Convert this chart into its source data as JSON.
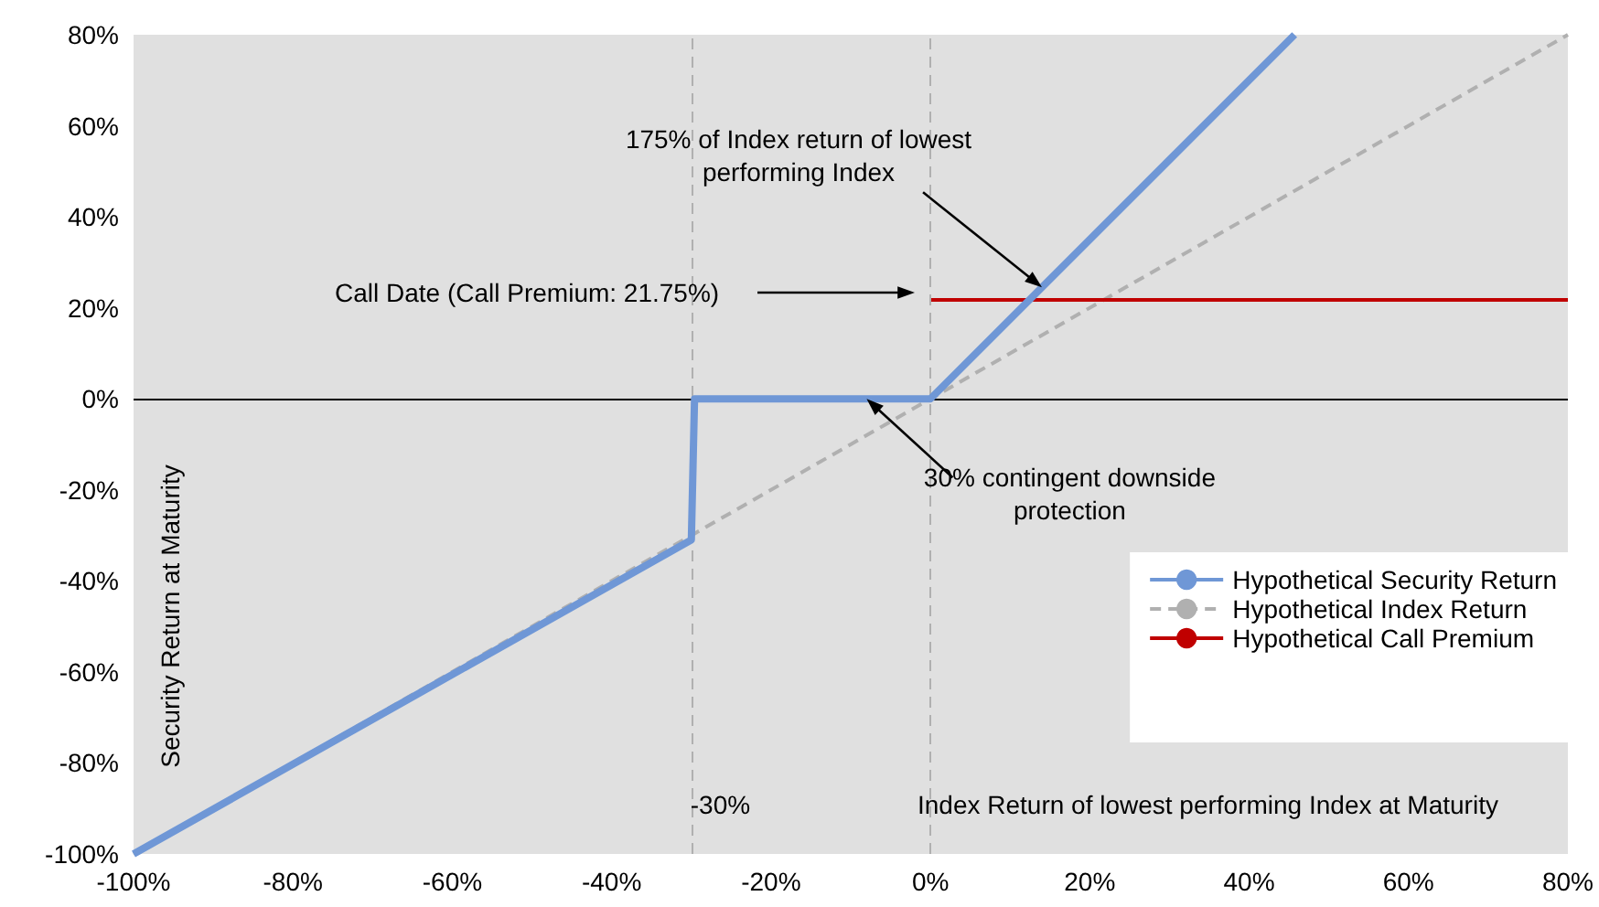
{
  "chart_data": {
    "type": "line",
    "xlabel": "Index Return of lowest performing Index at Maturity",
    "ylabel": "Security Return at Maturity",
    "xlim": [
      -100,
      80
    ],
    "ylim": [
      -100,
      80
    ],
    "xticks": [
      {
        "value": -100,
        "label": "-100%"
      },
      {
        "value": -80,
        "label": "-80%"
      },
      {
        "value": -60,
        "label": "-60%"
      },
      {
        "value": -40,
        "label": "-40%"
      },
      {
        "value": -20,
        "label": "-20%"
      },
      {
        "value": 0,
        "label": "0%"
      },
      {
        "value": 20,
        "label": "20%"
      },
      {
        "value": 40,
        "label": "40%"
      },
      {
        "value": 60,
        "label": "60%"
      },
      {
        "value": 80,
        "label": "80%"
      }
    ],
    "yticks": [
      {
        "value": -100,
        "label": "-100%"
      },
      {
        "value": -80,
        "label": "-80%"
      },
      {
        "value": -60,
        "label": "-60%"
      },
      {
        "value": -40,
        "label": "-40%"
      },
      {
        "value": -20,
        "label": "-20%"
      },
      {
        "value": 0,
        "label": "0%"
      },
      {
        "value": 20,
        "label": "20%"
      },
      {
        "value": 40,
        "label": "40%"
      },
      {
        "value": 60,
        "label": "60%"
      },
      {
        "value": 80,
        "label": "80%"
      }
    ],
    "series": [
      {
        "name": "Hypothetical Security Return",
        "color": "#6f97d6",
        "line_style": "solid",
        "x": [
          -100,
          -30,
          -29.6,
          0,
          45.7
        ],
        "values": [
          -100,
          -31,
          0,
          0,
          80
        ]
      },
      {
        "name": "Hypothetical Index Return",
        "color": "#b0b0b0",
        "line_style": "dashed",
        "x": [
          -100,
          80
        ],
        "values": [
          -100,
          80
        ]
      },
      {
        "name": "Hypothetical Call Premium",
        "color": "#c00000",
        "line_style": "solid",
        "x": [
          0,
          80
        ],
        "values": [
          21.75,
          21.75
        ]
      }
    ],
    "ref_lines": [
      {
        "axis": "x",
        "value": -30,
        "label": "-30%",
        "color": "#b0b0b0",
        "line_style": "dashed"
      },
      {
        "axis": "x",
        "value": 0,
        "color": "#b0b0b0",
        "line_style": "dashed"
      },
      {
        "axis": "y",
        "value": 0,
        "color": "#000000",
        "line_style": "solid"
      }
    ],
    "annotations": [
      {
        "text": "175% of Index return of lowest performing Index",
        "x": 14,
        "y": 24.5
      },
      "Call Date (Call Premium: 21.75%)",
      {
        "text": "30% contingent downside protection",
        "x": -8,
        "y": 0
      }
    ],
    "marker": "none",
    "grid": false,
    "legend": "bottom right"
  }
}
